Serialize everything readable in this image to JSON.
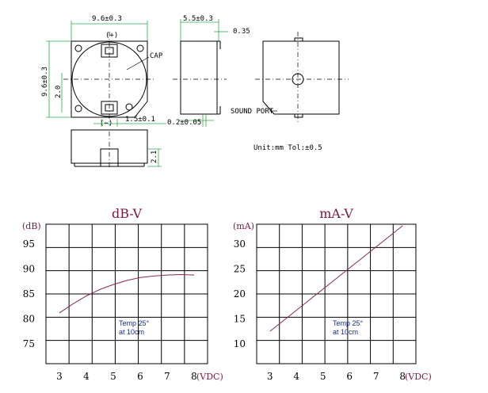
{
  "drawing": {
    "top_width": "9.6±0.3",
    "side_height": "9.6±0.3",
    "inner_dim": "2.0",
    "plus_mark": "(+)",
    "minus_mark": "(−)",
    "cap_label": "CAP",
    "pin_width": "1.5±0.1",
    "side_width": "5.5±0.3",
    "side_offset": "0.35",
    "side_bottom": "0.2±0.05",
    "sound_port": "SOUND PORT",
    "front_height": "2.1",
    "units_note": "Unit:mm  Tol:±0.5"
  },
  "chart_data": [
    {
      "type": "line",
      "title": "dB-V",
      "ylabel": "(dB)",
      "xlabel": "(VDC)",
      "x_ticks": [
        3,
        4,
        5,
        6,
        7,
        8
      ],
      "y_ticks": [
        75,
        80,
        85,
        90,
        95
      ],
      "xlim": [
        2.5,
        8.5
      ],
      "ylim": [
        71,
        99
      ],
      "annotation": [
        "Temp 25°",
        "at 10cm"
      ],
      "series": [
        {
          "x": [
            3,
            3.5,
            4,
            4.5,
            5,
            5.5,
            6,
            6.5,
            7,
            7.5,
            8
          ],
          "y": [
            81.2,
            83.0,
            84.6,
            85.9,
            86.9,
            87.7,
            88.3,
            88.6,
            88.8,
            88.9,
            88.8
          ]
        }
      ]
    },
    {
      "type": "line",
      "title": "mA-V",
      "ylabel": "(mA)",
      "xlabel": "(VDC)",
      "x_ticks": [
        3,
        4,
        5,
        6,
        7,
        8
      ],
      "y_ticks": [
        10,
        15,
        20,
        25,
        30
      ],
      "xlim": [
        2.5,
        8.5
      ],
      "ylim": [
        6,
        34
      ],
      "annotation": [
        "Temp 25°",
        "at 10cm"
      ],
      "series": [
        {
          "x": [
            3,
            8
          ],
          "y": [
            12.5,
            33.7
          ]
        }
      ]
    }
  ]
}
